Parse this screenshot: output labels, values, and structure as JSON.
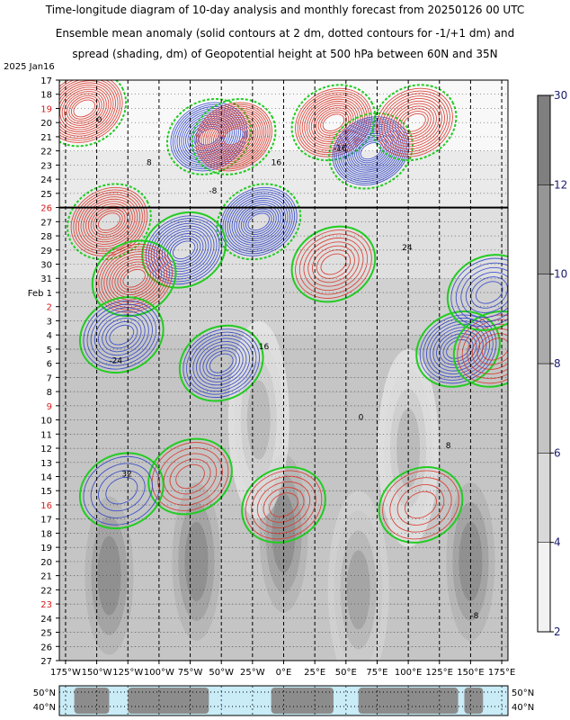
{
  "title_lines": [
    "Time-longitude diagram of 10-day analysis and monthly forecast from 20250126 00 UTC",
    "Ensemble mean anomaly (solid contours at 2 dm, dotted contours for -1/+1 dm) and",
    "spread (shading, dm) of Geopotential height at 500 hPa between 60N and 35N"
  ],
  "chart_data": {
    "type": "heatmap",
    "x_tick_labels": [
      "175°W",
      "150°W",
      "125°W",
      "100°W",
      "75°W",
      "50°W",
      "25°W",
      "0°E",
      "25°E",
      "50°E",
      "75°E",
      "100°E",
      "125°E",
      "150°E",
      "175°E"
    ],
    "x_range": [
      -180,
      180
    ],
    "year_label": "2025 Jan16",
    "y_tick_labels": [
      {
        "label": "17",
        "highlight": false
      },
      {
        "label": "18",
        "highlight": false
      },
      {
        "label": "19",
        "highlight": true
      },
      {
        "label": "20",
        "highlight": false
      },
      {
        "label": "21",
        "highlight": false
      },
      {
        "label": "22",
        "highlight": false
      },
      {
        "label": "23",
        "highlight": false
      },
      {
        "label": "24",
        "highlight": false
      },
      {
        "label": "25",
        "highlight": false
      },
      {
        "label": "26",
        "highlight": true
      },
      {
        "label": "27",
        "highlight": false
      },
      {
        "label": "28",
        "highlight": false
      },
      {
        "label": "29",
        "highlight": false
      },
      {
        "label": "30",
        "highlight": false
      },
      {
        "label": "31",
        "highlight": false
      },
      {
        "label": "Feb  1",
        "highlight": false
      },
      {
        "label": "2",
        "highlight": true
      },
      {
        "label": "3",
        "highlight": false
      },
      {
        "label": "4",
        "highlight": false
      },
      {
        "label": "5",
        "highlight": false
      },
      {
        "label": "6",
        "highlight": false
      },
      {
        "label": "7",
        "highlight": false
      },
      {
        "label": "8",
        "highlight": false
      },
      {
        "label": "9",
        "highlight": true
      },
      {
        "label": "10",
        "highlight": false
      },
      {
        "label": "11",
        "highlight": false
      },
      {
        "label": "12",
        "highlight": false
      },
      {
        "label": "13",
        "highlight": false
      },
      {
        "label": "14",
        "highlight": false
      },
      {
        "label": "15",
        "highlight": false
      },
      {
        "label": "16",
        "highlight": true
      },
      {
        "label": "17",
        "highlight": false
      },
      {
        "label": "18",
        "highlight": false
      },
      {
        "label": "19",
        "highlight": false
      },
      {
        "label": "20",
        "highlight": false
      },
      {
        "label": "21",
        "highlight": false
      },
      {
        "label": "22",
        "highlight": false
      },
      {
        "label": "23",
        "highlight": true
      },
      {
        "label": "24",
        "highlight": false
      },
      {
        "label": "25",
        "highlight": false
      },
      {
        "label": "26",
        "highlight": false
      },
      {
        "label": "27",
        "highlight": false
      }
    ],
    "analysis_forecast_divider": "26",
    "colorbar": {
      "levels": [
        2,
        4,
        6,
        8,
        10,
        12,
        30
      ],
      "tick_labels": [
        "2",
        "4",
        "6",
        "8",
        "10",
        "12",
        "30"
      ],
      "colors": [
        "#f2f2f2",
        "#d9d9d9",
        "#c4c4c4",
        "#ababab",
        "#969696",
        "#7f7f7f"
      ]
    },
    "contour_colors": {
      "positive": "#d93a2e",
      "negative": "#3347c9",
      "zero": "#22cc22",
      "dense_positive": "#e83a2c",
      "dense_negative": "#2b3fd0"
    },
    "contour_labels": [
      "0",
      "8",
      "-8",
      "16",
      "-16",
      "24",
      "-24",
      "32"
    ],
    "map_lat_labels": [
      "50°N",
      "40°N"
    ],
    "anomaly_features": [
      {
        "sign": "pos",
        "lon": -160,
        "day": 2,
        "peak": 26
      },
      {
        "sign": "pos",
        "lon": -140,
        "day": 10,
        "peak": 24
      },
      {
        "sign": "neg",
        "lon": -60,
        "day": 4,
        "peak": -28
      },
      {
        "sign": "pos",
        "lon": -40,
        "day": 4,
        "peak": 30
      },
      {
        "sign": "neg",
        "lon": -20,
        "day": 10,
        "peak": -26
      },
      {
        "sign": "pos",
        "lon": 40,
        "day": 3,
        "peak": 26
      },
      {
        "sign": "neg",
        "lon": 70,
        "day": 5,
        "peak": -30
      },
      {
        "sign": "pos",
        "lon": 105,
        "day": 3,
        "peak": 22
      },
      {
        "sign": "neg",
        "lon": -80,
        "day": 12,
        "peak": -22
      },
      {
        "sign": "pos",
        "lon": -120,
        "day": 14,
        "peak": 22
      },
      {
        "sign": "neg",
        "lon": -130,
        "day": 18,
        "peak": -16
      },
      {
        "sign": "neg",
        "lon": -50,
        "day": 20,
        "peak": -18
      },
      {
        "sign": "pos",
        "lon": 40,
        "day": 13,
        "peak": 14
      },
      {
        "sign": "neg",
        "lon": 140,
        "day": 19,
        "peak": -18
      },
      {
        "sign": "pos",
        "lon": 170,
        "day": 19,
        "peak": 12
      },
      {
        "sign": "neg",
        "lon": 165,
        "day": 15,
        "peak": -12
      },
      {
        "sign": "pos",
        "lon": -75,
        "day": 28,
        "peak": 10
      },
      {
        "sign": "neg",
        "lon": -130,
        "day": 29,
        "peak": -8
      },
      {
        "sign": "pos",
        "lon": 0,
        "day": 30,
        "peak": 10
      },
      {
        "sign": "pos",
        "lon": 110,
        "day": 30,
        "peak": 8
      }
    ],
    "spread_features": [
      {
        "lon": -140,
        "day": 35,
        "value": 12
      },
      {
        "lon": -70,
        "day": 34,
        "value": 11
      },
      {
        "lon": 0,
        "day": 32,
        "value": 12
      },
      {
        "lon": 60,
        "day": 36,
        "value": 10
      },
      {
        "lon": 150,
        "day": 34,
        "value": 11
      },
      {
        "lon": -20,
        "day": 24,
        "value": 8
      },
      {
        "lon": 100,
        "day": 26,
        "value": 7
      }
    ]
  }
}
